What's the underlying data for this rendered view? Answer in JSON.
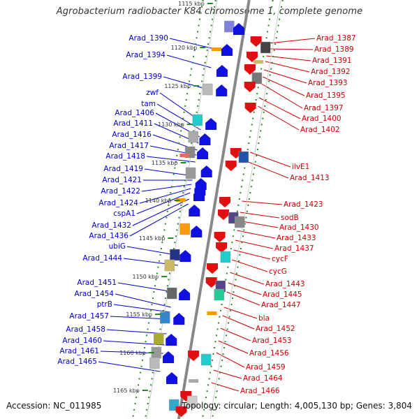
{
  "title": "Agrobacterium radiobacter K84 chromosome 1, complete genome",
  "footer": {
    "accession": "Accession: NC_011985",
    "topology": "Topology: circular; Length: 4,005,130 bp; Genes: 3,804"
  },
  "colors": {
    "left_labels": "#0000cc",
    "right_labels": "#cc0000",
    "forward_gene": "#1010e0",
    "reverse_gene": "#e01010",
    "backbone": "#888888",
    "tick": "#228822"
  },
  "kbp_marks": [
    "1115 kbp",
    "1120 kbp",
    "1125 kbp",
    "1130 kbp",
    "1135 kbp",
    "1140 kbp",
    "1145 kbp",
    "1150 kbp",
    "1155 kbp",
    "1160 kbp",
    "1165 kbp"
  ],
  "left_labels": [
    "Arad_1390",
    "Arad_1394",
    "Arad_1399",
    "zwf",
    "tam",
    "Arad_1406",
    "Arad_1411",
    "Arad_1416",
    "Arad_1417",
    "Arad_1418",
    "Arad_1419",
    "Arad_1421",
    "Arad_1422",
    "Arad_1424",
    "cspA1",
    "Arad_1432",
    "Arad_1436",
    "ubiG",
    "Arad_1444",
    "Arad_1451",
    "Arad_1454",
    "ptrB",
    "Arad_1457",
    "Arad_1458",
    "Arad_1460",
    "Arad_1461",
    "Arad_1465"
  ],
  "right_labels": [
    "Arad_1387",
    "Arad_1389",
    "Arad_1391",
    "Arad_1392",
    "Arad_1393",
    "Arad_1395",
    "Arad_1397",
    "Arad_1400",
    "Arad_1402",
    "ilvE1",
    "Arad_1413",
    "Arad_1423",
    "sodB",
    "Arad_1430",
    "Arad_1433",
    "Arad_1437",
    "cycF",
    "cycG",
    "Arad_1443",
    "Arad_1445",
    "Arad_1447",
    "bla",
    "Arad_1452",
    "Arad_1453",
    "Arad_1456",
    "Arad_1459",
    "Arad_1464",
    "Arad_1466"
  ]
}
